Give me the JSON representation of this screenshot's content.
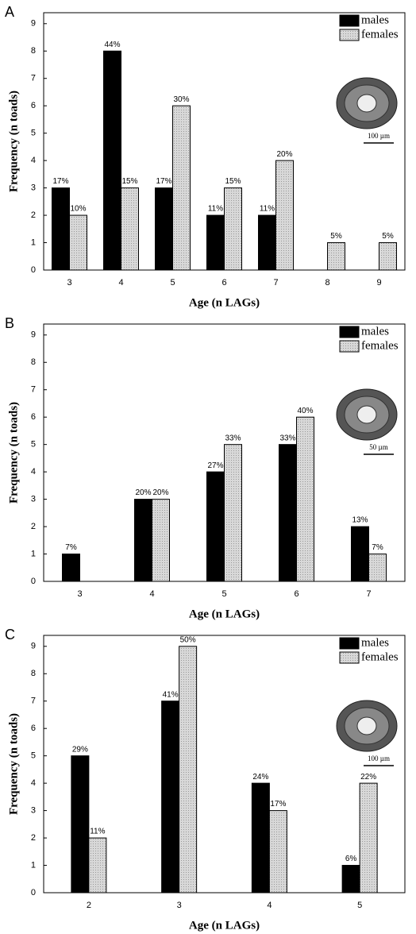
{
  "chart_data": [
    {
      "type": "bar",
      "panel": "A",
      "xlabel": "Age (n LAGs)",
      "ylabel": "Frequency (n toads)",
      "categories": [
        "3",
        "4",
        "5",
        "6",
        "7",
        "8",
        "9"
      ],
      "series": [
        {
          "name": "males",
          "color": "#000000",
          "values": [
            3,
            8,
            3,
            2,
            2,
            null,
            null
          ],
          "percent_labels": [
            "17%",
            "44%",
            "17%",
            "11%",
            "11%",
            null,
            null
          ]
        },
        {
          "name": "females",
          "color": "#cfcfcf",
          "values": [
            2,
            3,
            6,
            3,
            4,
            1,
            1
          ],
          "percent_labels": [
            "10%",
            "15%",
            "30%",
            "15%",
            "20%",
            "5%",
            "5%"
          ]
        }
      ],
      "ylim": [
        0,
        9.4
      ],
      "yticks": [
        0,
        1,
        2,
        3,
        4,
        5,
        6,
        7,
        8,
        9
      ],
      "legend": "top-right",
      "scale_bar": "100 µm"
    },
    {
      "type": "bar",
      "panel": "B",
      "xlabel": "Age (n LAGs)",
      "ylabel": "Frequency (n toads)",
      "categories": [
        "3",
        "4",
        "5",
        "6",
        "7"
      ],
      "series": [
        {
          "name": "males",
          "color": "#000000",
          "values": [
            1,
            3,
            4,
            5,
            2
          ],
          "percent_labels": [
            "7%",
            "20%",
            "27%",
            "33%",
            "13%"
          ]
        },
        {
          "name": "females",
          "color": "#cfcfcf",
          "values": [
            null,
            3,
            5,
            6,
            1
          ],
          "percent_labels": [
            null,
            "20%",
            "33%",
            "40%",
            "7%"
          ]
        }
      ],
      "ylim": [
        0,
        9.4
      ],
      "yticks": [
        0,
        1,
        2,
        3,
        4,
        5,
        6,
        7,
        8,
        9
      ],
      "legend": "top-right",
      "scale_bar": "50 µm"
    },
    {
      "type": "bar",
      "panel": "C",
      "xlabel": "Age (n LAGs)",
      "ylabel": "Frequency (n toads)",
      "categories": [
        "2",
        "3",
        "4",
        "5"
      ],
      "series": [
        {
          "name": "males",
          "color": "#000000",
          "values": [
            5,
            7,
            4,
            1
          ],
          "percent_labels": [
            "29%",
            "41%",
            "24%",
            "6%"
          ]
        },
        {
          "name": "females",
          "color": "#cfcfcf",
          "values": [
            2,
            9,
            3,
            4
          ],
          "percent_labels": [
            "11%",
            "50%",
            "17%",
            "22%"
          ]
        }
      ],
      "ylim": [
        0,
        9.4
      ],
      "yticks": [
        0,
        1,
        2,
        3,
        4,
        5,
        6,
        7,
        8,
        9
      ],
      "legend": "top-right",
      "scale_bar": "100 µm"
    }
  ]
}
